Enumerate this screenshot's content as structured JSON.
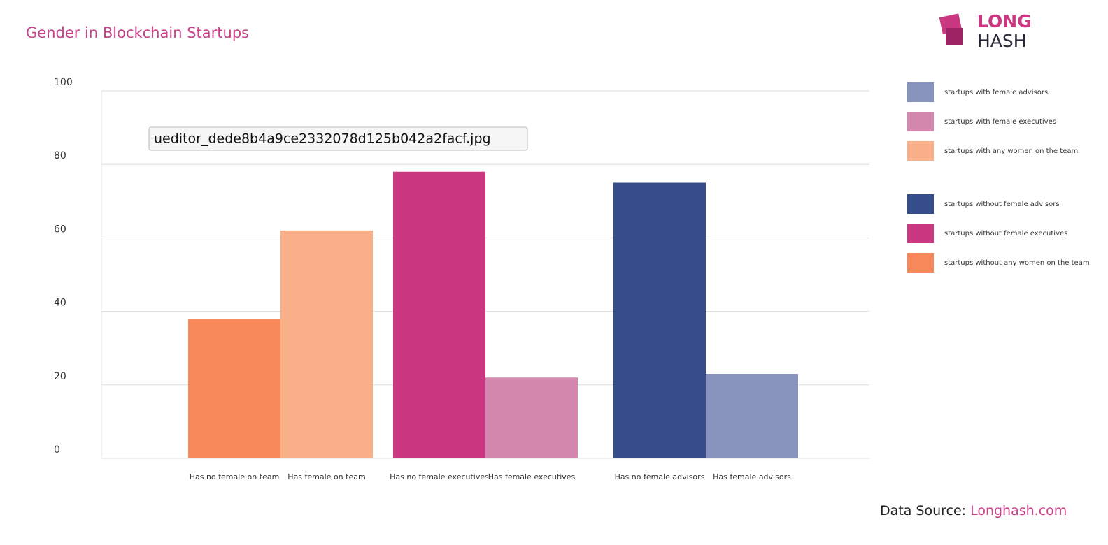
{
  "chart_data": {
    "type": "bar",
    "title": "Gender in Blockchain Startups",
    "categories": [
      "Has no female on team",
      "Has female on team",
      "Has no female executives",
      "Has female executives",
      "Has no female advisors",
      "Has female advisors"
    ],
    "series": [
      {
        "name": "startups with female advisors",
        "color": "#8893bd",
        "values": [
          null,
          null,
          null,
          null,
          null,
          23
        ]
      },
      {
        "name": "startups with female executives",
        "color": "#d488ae",
        "values": [
          null,
          null,
          null,
          22,
          null,
          null
        ]
      },
      {
        "name": "startups with any women on the team",
        "color": "#f9b088",
        "values": [
          null,
          62,
          null,
          null,
          null,
          null
        ]
      },
      {
        "name": "startups without female advisors",
        "color": "#364d8c",
        "values": [
          null,
          null,
          null,
          null,
          75,
          null
        ]
      },
      {
        "name": "startups without female executives",
        "color": "#c93880",
        "values": [
          null,
          null,
          78,
          null,
          null,
          null
        ]
      },
      {
        "name": "startups without any women on the team",
        "color": "#f7895a",
        "values": [
          38,
          null,
          null,
          null,
          null,
          null
        ]
      }
    ],
    "ylim": [
      0,
      100
    ],
    "yticks": [
      0,
      20,
      40,
      60,
      80,
      100
    ],
    "grid": true
  },
  "logo": {
    "top": "LONG",
    "bottom": "HASH"
  },
  "source": {
    "label": "Data Source:",
    "link": "Longhash.com"
  },
  "tooltip": "ueditor_dede8b4a9ce2332078d125b042a2facf.jpg"
}
